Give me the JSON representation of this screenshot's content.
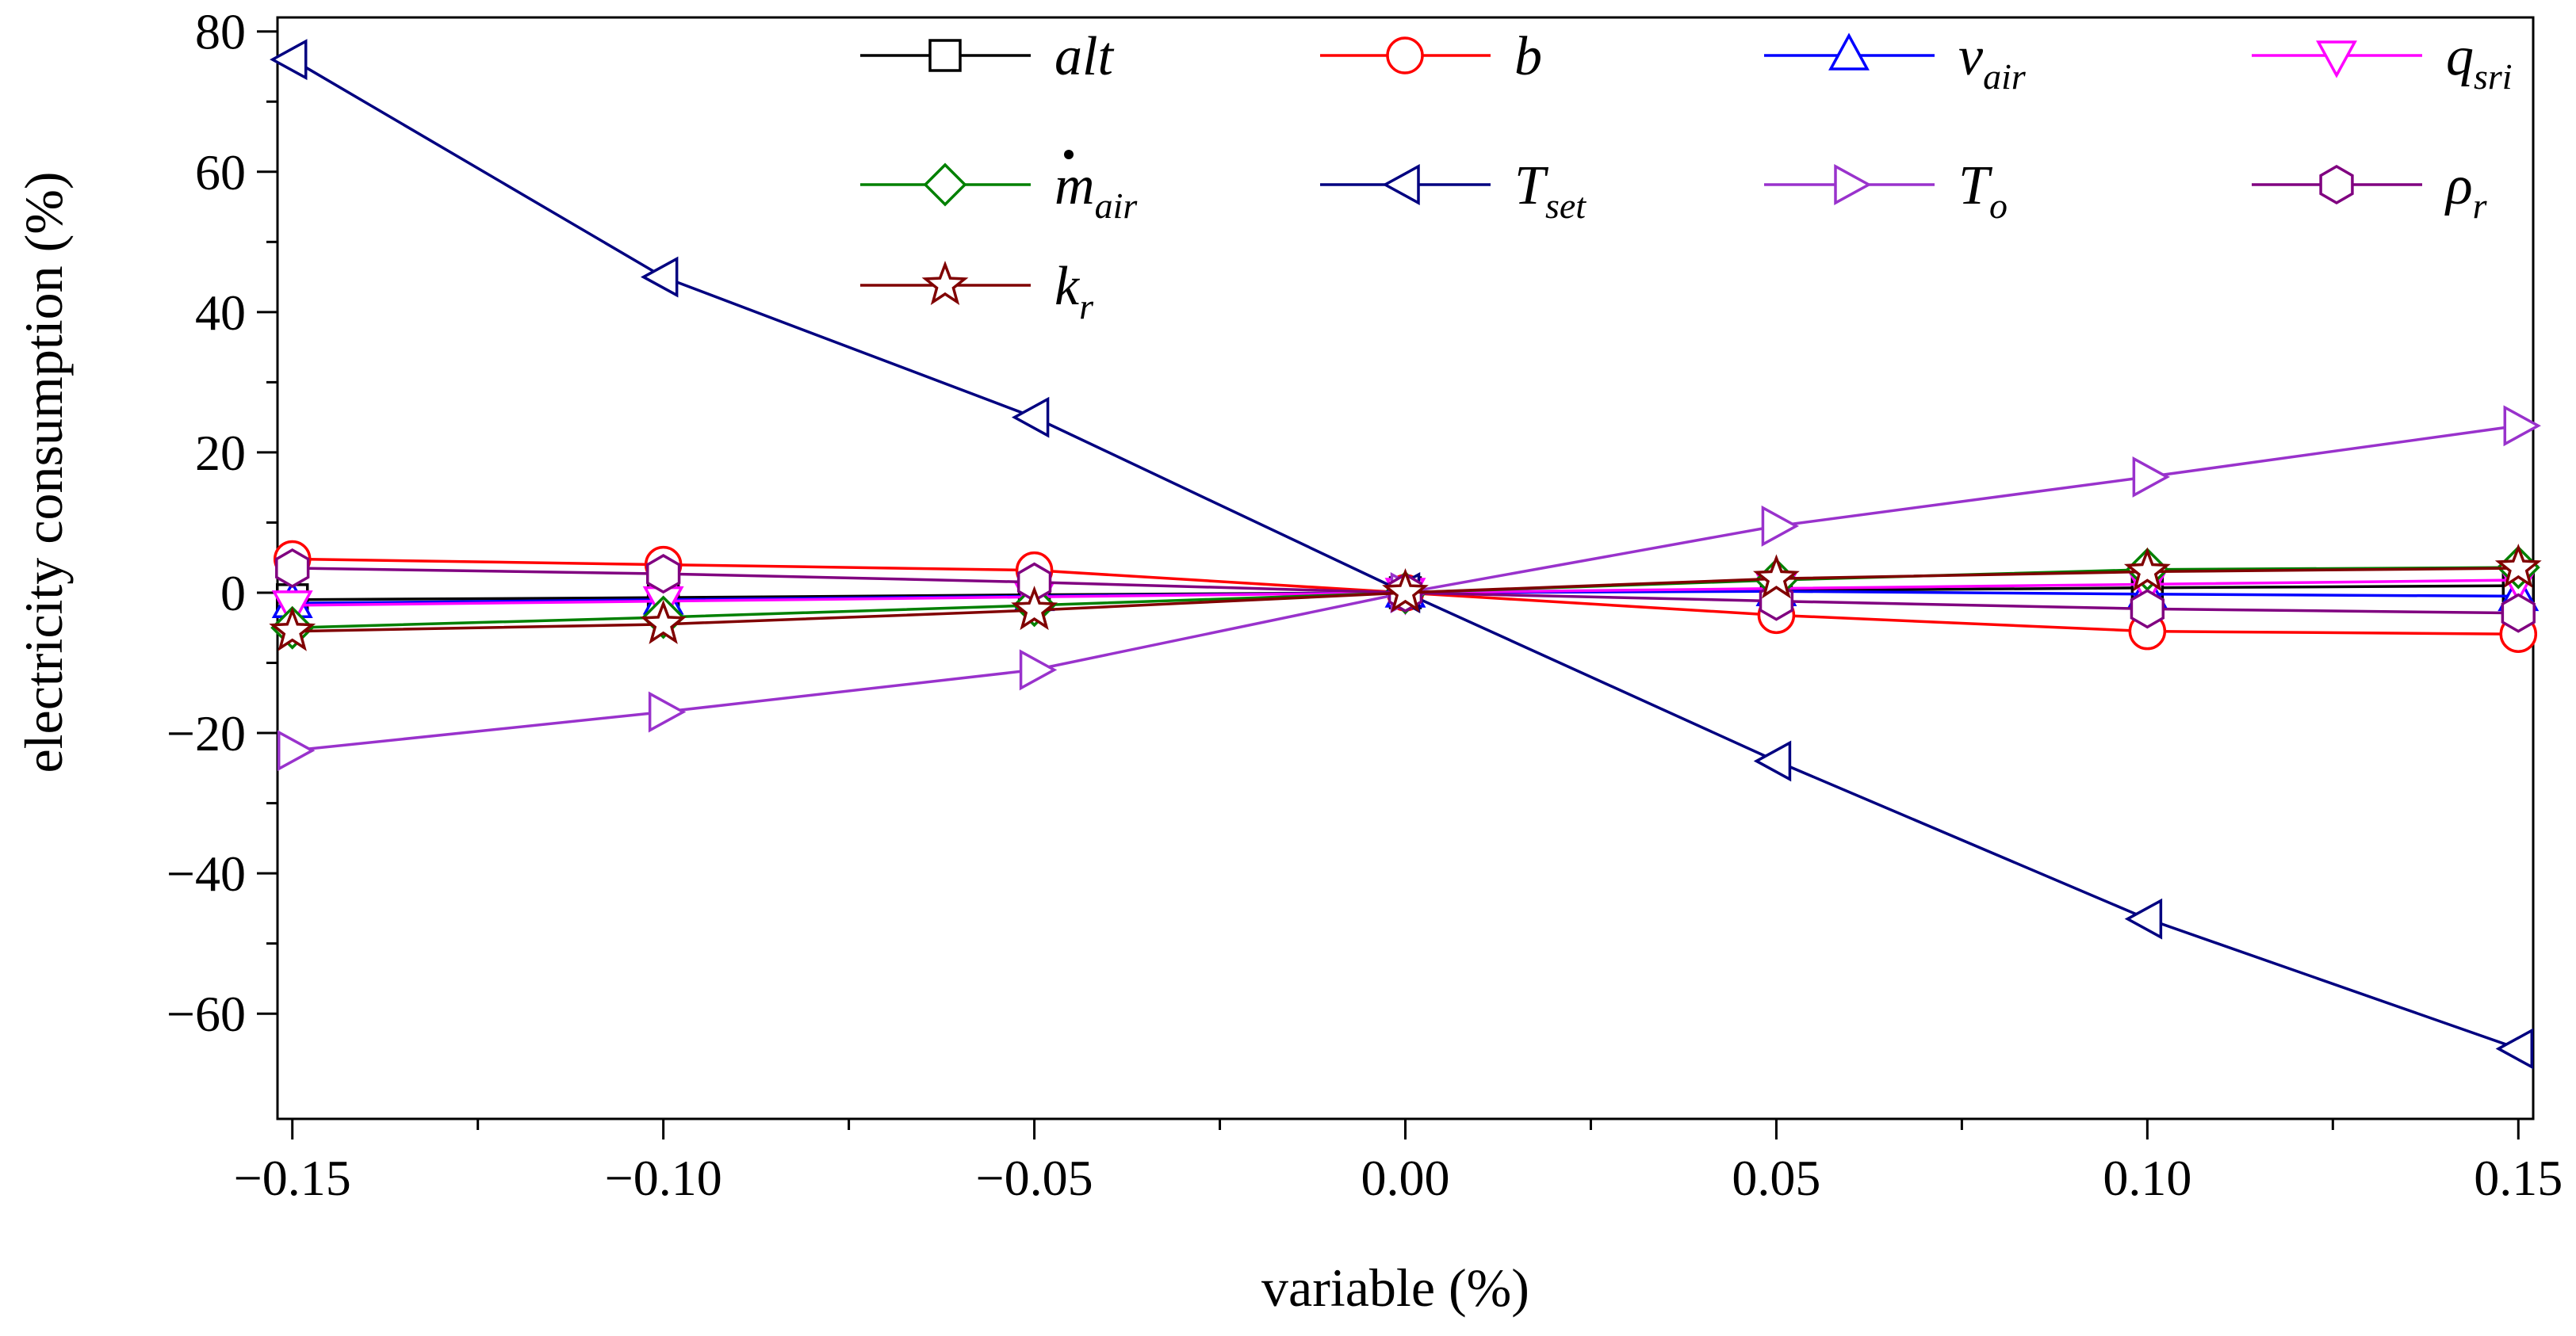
{
  "chart_data": {
    "type": "line",
    "xlabel": "variable (%)",
    "ylabel": "electricity consumption (%)",
    "xlim": [
      -0.152,
      0.152
    ],
    "ylim": [
      -75,
      82
    ],
    "x_ticks": [
      -0.15,
      -0.1,
      -0.05,
      0.0,
      0.05,
      0.1,
      0.15
    ],
    "x_tick_labels": [
      "−0.15",
      "−0.10",
      "−0.05",
      "0.00",
      "0.05",
      "0.10",
      "0.15"
    ],
    "y_ticks": [
      -60,
      -40,
      -20,
      0,
      20,
      40,
      60,
      80
    ],
    "y_tick_labels": [
      "−60",
      "−40",
      "−20",
      "0",
      "20",
      "40",
      "60",
      "80"
    ],
    "x": [
      -0.15,
      -0.1,
      -0.05,
      0.0,
      0.05,
      0.1,
      0.15
    ],
    "grid": false,
    "legend_position": "top-right",
    "series": [
      {
        "name": "alt",
        "label": {
          "base": "alt",
          "sub": "",
          "dot": false
        },
        "color": "#000000",
        "marker": "square",
        "values": [
          -1.0,
          -0.7,
          -0.3,
          0,
          0.3,
          0.7,
          1.0
        ]
      },
      {
        "name": "b",
        "label": {
          "base": "b",
          "sub": "",
          "dot": false
        },
        "color": "#ff0000",
        "marker": "circle",
        "values": [
          4.8,
          4.0,
          3.2,
          0,
          -3.2,
          -5.5,
          -5.9
        ]
      },
      {
        "name": "v_air",
        "label": {
          "base": "v",
          "sub": "air",
          "dot": false
        },
        "color": "#0000ff",
        "marker": "triangle-up",
        "values": [
          -1.5,
          -1.0,
          -0.5,
          0,
          0.2,
          -0.2,
          -0.5
        ]
      },
      {
        "name": "q_sri",
        "label": {
          "base": "q",
          "sub": "sri",
          "dot": false
        },
        "color": "#ff00ff",
        "marker": "triangle-down",
        "values": [
          -1.8,
          -1.2,
          -0.6,
          0,
          0.6,
          1.2,
          1.8
        ]
      },
      {
        "name": "m_air",
        "label": {
          "base": "m",
          "sub": "air",
          "dot": true
        },
        "color": "#008000",
        "marker": "diamond",
        "values": [
          -5.0,
          -3.5,
          -1.8,
          0,
          1.8,
          3.3,
          3.6
        ]
      },
      {
        "name": "T_set",
        "label": {
          "base": "T",
          "sub": "set",
          "dot": false
        },
        "color": "#000080",
        "marker": "triangle-left",
        "values": [
          76.0,
          45.0,
          25.0,
          0,
          -24.0,
          -46.5,
          -65.0
        ]
      },
      {
        "name": "T_o",
        "label": {
          "base": "T",
          "sub": "o",
          "dot": false
        },
        "color": "#9932cc",
        "marker": "triangle-right",
        "values": [
          -22.5,
          -17.0,
          -11.0,
          0,
          9.5,
          16.5,
          23.8
        ]
      },
      {
        "name": "rho_r",
        "label": {
          "base": "ρ",
          "sub": "r",
          "dot": false
        },
        "color": "#800080",
        "marker": "hexagon",
        "values": [
          3.5,
          2.7,
          1.5,
          0,
          -1.2,
          -2.3,
          -2.9
        ]
      },
      {
        "name": "k_r",
        "label": {
          "base": "k",
          "sub": "r",
          "dot": false
        },
        "color": "#800000",
        "marker": "star",
        "values": [
          -5.5,
          -4.5,
          -2.5,
          0,
          2.0,
          3.0,
          3.5
        ]
      }
    ]
  }
}
